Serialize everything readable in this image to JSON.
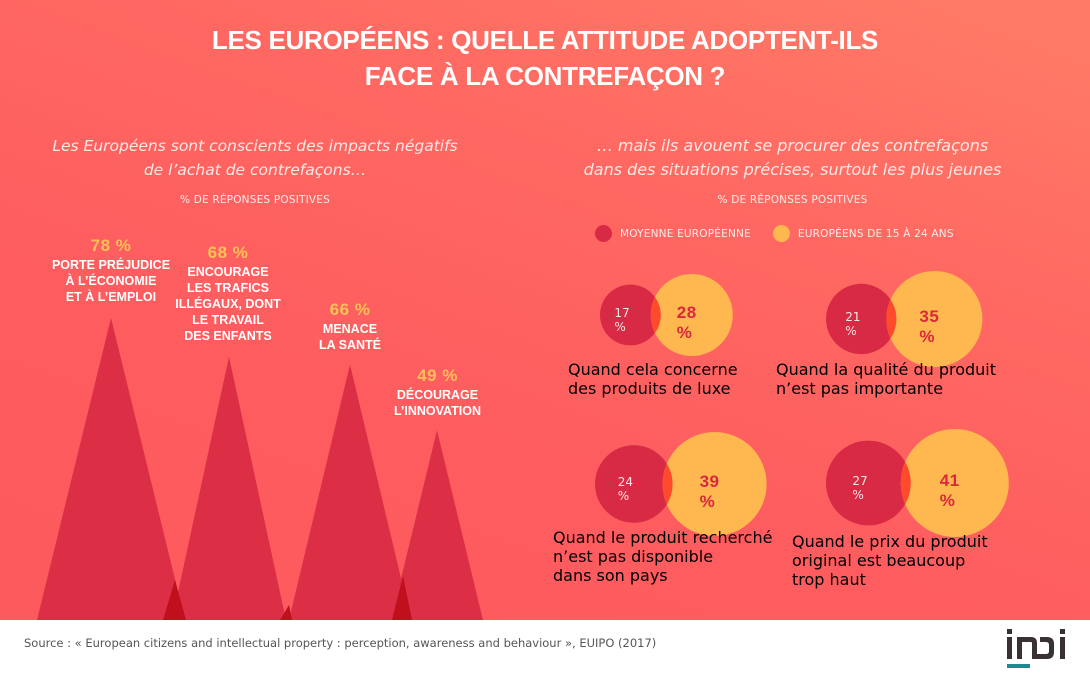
{
  "header": {
    "title_line1": "LES EUROPÉENS : QUELLE ATTITUDE ADOPTENT-ILS",
    "title_line2": "FACE À LA CONTREFAÇON ?"
  },
  "left": {
    "subtitle_line1": "Les Européens sont conscients des impacts négatifs",
    "subtitle_line2": "de l’achat de contrefaçons…",
    "caption": "% DE RÉPONSES POSITIVES",
    "items": [
      {
        "pct": "78 %",
        "value": 78,
        "label_lines": [
          "PORTE PRÉJUDICE",
          "À L’ÉCONOMIE",
          "ET À L’EMPLOI"
        ]
      },
      {
        "pct": "68 %",
        "value": 68,
        "label_lines": [
          "ENCOURAGE",
          "LES TRAFICS",
          "ILLÉGAUX, DONT",
          "LE TRAVAIL",
          "DES ENFANTS"
        ]
      },
      {
        "pct": "66 %",
        "value": 66,
        "label_lines": [
          "MENACE",
          "LA SANTÉ"
        ]
      },
      {
        "pct": "49 %",
        "value": 49,
        "label_lines": [
          "DÉCOURAGE",
          "L’INNOVATION"
        ]
      }
    ]
  },
  "right": {
    "subtitle_line1": "… mais ils avouent se procurer des contrefaçons",
    "subtitle_line2": "dans des situations précises, surtout les plus jeunes",
    "caption": "% DE RÉPONSES POSITIVES",
    "legend": [
      {
        "label": "MOYENNE EUROPÉENNE",
        "color": "#d92a45"
      },
      {
        "label": "EUROPÉENS DE 15 À 24 ANS",
        "color": "#ffb84f"
      }
    ],
    "situations": [
      {
        "avg": "17 %",
        "avg_value": 17,
        "young": "28 %",
        "young_value": 28,
        "caption_lines": [
          "Quand cela concerne",
          "des produits de luxe"
        ]
      },
      {
        "avg": "21 %",
        "avg_value": 21,
        "young": "35 %",
        "young_value": 35,
        "caption_lines": [
          "Quand la qualité du produit",
          "n’est pas importante"
        ]
      },
      {
        "avg": "24 %",
        "avg_value": 24,
        "young": "39 %",
        "young_value": 39,
        "caption_lines": [
          "Quand le produit recherché",
          "n’est pas disponible",
          "dans son pays"
        ]
      },
      {
        "avg": "27 %",
        "avg_value": 27,
        "young": "41 %",
        "young_value": 41,
        "caption_lines": [
          "Quand le prix du produit",
          "original est beaucoup",
          "trop haut"
        ]
      }
    ]
  },
  "colors": {
    "triangle": "#d92c44",
    "overlap_dark": "#c0101e",
    "avg_circle": "#d92a45",
    "young_circle": "#ffb84f",
    "venn_overlap": "#ff4a2c",
    "pct_accent": "#ffc157"
  },
  "footer": {
    "source": "Source : « European citizens and intellectual property : perception, awareness and behaviour », EUIPO (2017)",
    "logo_text": "inpi"
  }
}
